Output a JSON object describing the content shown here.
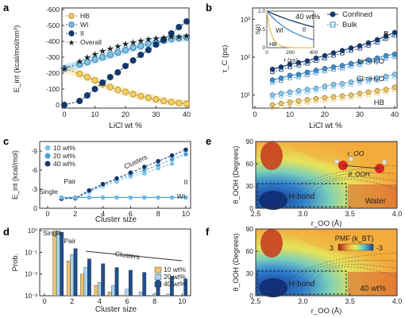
{
  "panel_letters": {
    "a": "a",
    "b": "b",
    "c": "c",
    "d": "d",
    "e": "e",
    "f": "f"
  },
  "colors": {
    "HB": "#f3cf63",
    "WI": "#7fc4e8",
    "II": "#12386b",
    "Overall": "#5ab3e0",
    "d10": "#f2c36a",
    "d20": "#a8d4ef",
    "d40": "#1f4f8c"
  },
  "chart_data": [
    {
      "id": "a",
      "type": "line",
      "ylabel": "E_int (kcal/mol/nm³)",
      "xlabel": "LiCl wt %",
      "xlim": [
        0,
        40
      ],
      "ylim": [
        0,
        -600
      ],
      "xticks": [
        0,
        10,
        20,
        30,
        40
      ],
      "yticks": [
        0,
        -100,
        -200,
        -300,
        -400,
        -500,
        -600
      ],
      "x": [
        0,
        5,
        7.5,
        10,
        12.5,
        15,
        17.5,
        20,
        22.5,
        25,
        27.5,
        30,
        32.5,
        35,
        37.5,
        40
      ],
      "series": [
        {
          "name": "HB",
          "values": [
            -230,
            -195,
            -175,
            -155,
            -130,
            -112,
            -95,
            -82,
            -68,
            -55,
            -45,
            -35,
            -25,
            -18,
            -12,
            -8
          ]
        },
        {
          "name": "WI",
          "values": [
            -230,
            -255,
            -270,
            -285,
            -300,
            -315,
            -330,
            -345,
            -360,
            -370,
            -385,
            -395,
            -405,
            -415,
            -420,
            -425
          ]
        },
        {
          "name": "II",
          "values": [
            0,
            -25,
            -60,
            -100,
            -140,
            -175,
            -205,
            -245,
            -280,
            -315,
            -345,
            -380,
            -410,
            -450,
            -490,
            -525
          ]
        },
        {
          "name": "Overall",
          "values": [
            -230,
            -275,
            -300,
            -320,
            -340,
            -355,
            -370,
            -385,
            -395,
            -405,
            -415,
            -420,
            -425,
            -430,
            -430,
            -435
          ]
        }
      ]
    },
    {
      "id": "b",
      "type": "line",
      "ylabel": "τ_C (ps)",
      "xlabel": "LiCl wt %",
      "xlim": [
        0,
        40
      ],
      "ylim": [
        5,
        2000
      ],
      "yscale": "log",
      "xticks": [
        0,
        10,
        20,
        30,
        40
      ],
      "ytick_labels": [
        "10¹",
        "10²",
        "10³"
      ],
      "x": [
        5,
        7.5,
        10,
        12.5,
        15,
        17.5,
        20,
        22.5,
        25,
        27.5,
        30,
        32.5,
        35,
        37.5,
        40
      ],
      "series": [
        {
          "name": "II",
          "values": [
            48,
            55,
            65,
            72,
            80,
            95,
            110,
            130,
            150,
            175,
            200,
            240,
            290,
            360,
            450
          ]
        },
        {
          "name": "Li⁺-H₂O",
          "values": [
            25,
            28,
            33,
            35,
            40,
            45,
            50,
            55,
            60,
            68,
            75,
            85,
            95,
            110,
            120
          ]
        },
        {
          "name": "Cl⁻-H₂O",
          "values": [
            10,
            11,
            12,
            13,
            14,
            15,
            17,
            19,
            20,
            22,
            24,
            26,
            28,
            31,
            35
          ]
        },
        {
          "name": "HB",
          "values": [
            5.5,
            6,
            6.5,
            7,
            7.5,
            8,
            8.5,
            9,
            9.5,
            10,
            11,
            12,
            13,
            14,
            16
          ]
        }
      ],
      "legend": [
        "Confined",
        "Bulk"
      ],
      "inset": {
        "label": "40 wt%",
        "ylabel": "S(τ)",
        "xlabel": "τ (ps)",
        "xticks": [
          "0",
          "200",
          "400"
        ],
        "yticks": [
          "0",
          "0.5",
          "1.0"
        ],
        "curves": [
          "WI",
          "II",
          "HB"
        ]
      }
    },
    {
      "id": "c",
      "type": "scatter",
      "ylabel": "E_int (kcal/mol)",
      "xlabel": "Cluster size",
      "xlim": [
        0,
        10
      ],
      "ylim": [
        0,
        -10
      ],
      "xticks": [
        0,
        2,
        4,
        6,
        8,
        10
      ],
      "yticks": [
        0,
        -3,
        -6,
        -9
      ],
      "series": [
        {
          "name": "10 wt%",
          "values": [
            [
              1,
              -1.5
            ],
            [
              2,
              -1.5
            ],
            [
              3,
              -2.5
            ],
            [
              4,
              -3.5
            ],
            [
              5,
              -4.2
            ],
            [
              6,
              -5
            ],
            [
              7,
              -5.5
            ],
            [
              8,
              -6.3
            ],
            [
              9,
              -7
            ]
          ]
        },
        {
          "name": "20 wt%",
          "values": [
            [
              1,
              -1.5
            ],
            [
              2,
              -1.6
            ],
            [
              3,
              -2.7
            ],
            [
              4,
              -3.7
            ],
            [
              5,
              -4.5
            ],
            [
              6,
              -5.3
            ],
            [
              7,
              -6
            ],
            [
              8,
              -6.8
            ],
            [
              9,
              -7.7
            ],
            [
              10,
              -8.5
            ]
          ]
        },
        {
          "name": "40 wt%",
          "values": [
            [
              1,
              -1.5
            ],
            [
              2,
              -1.6
            ],
            [
              3,
              -2.8
            ],
            [
              4,
              -3.8
            ],
            [
              5,
              -4.7
            ],
            [
              6,
              -5.6
            ],
            [
              7,
              -6.5
            ],
            [
              8,
              -7.4
            ],
            [
              9,
              -8.3
            ],
            [
              10,
              -9.2
            ]
          ]
        }
      ],
      "annotations": [
        "Single",
        "Pair",
        "Clusters",
        "II",
        "WI"
      ]
    },
    {
      "id": "d",
      "type": "bar",
      "yscale": "log",
      "ylabel": "Prob.",
      "xlabel": "Cluster size",
      "ylim": [
        0.001,
        1
      ],
      "ytick_labels": [
        "10⁻³",
        "10⁻²",
        "10⁻¹",
        "10⁰"
      ],
      "categories": [
        1,
        2,
        3,
        4,
        5,
        6,
        7,
        8,
        9,
        10
      ],
      "xticks": [
        0,
        2,
        4,
        6,
        8,
        10
      ],
      "series": [
        {
          "name": "10 wt%",
          "values": [
            1.0,
            0.04,
            0.01,
            0.003,
            0.0015,
            0.001,
            0.001,
            0.001,
            0.001,
            0.001
          ]
        },
        {
          "name": "20 wt%",
          "values": [
            1.0,
            0.08,
            0.02,
            0.004,
            0.003,
            0.002,
            0.0015,
            0.0012,
            0.0012,
            0.001
          ]
        },
        {
          "name": "40 wt%",
          "values": [
            0.85,
            0.15,
            0.05,
            0.03,
            0.02,
            0.015,
            0.012,
            0.01,
            0.008,
            0.006
          ]
        }
      ],
      "annotations": [
        "Single",
        "Pair",
        "Clusters"
      ]
    },
    {
      "id": "e",
      "type": "heatmap",
      "ylabel": "θ_OOH (Degrees)",
      "xlabel": "r_OO (Å)",
      "xlim": [
        2.5,
        4.0
      ],
      "ylim": [
        0,
        90
      ],
      "xticks": [
        "2.5",
        "3.0",
        "3.5",
        "4.0"
      ],
      "yticks": [
        "0",
        "30",
        "60",
        "90"
      ],
      "annotations": [
        "H-bond",
        "Water",
        "r_OO",
        "θ_OOH"
      ]
    },
    {
      "id": "f",
      "type": "heatmap",
      "ylabel": "θ_OOH (Degrees)",
      "xlabel": "r_OO (Å)",
      "xlim": [
        2.5,
        4.0
      ],
      "ylim": [
        0,
        90
      ],
      "xticks": [
        "2.5",
        "3.0",
        "3.5",
        "4.0"
      ],
      "yticks": [
        "0",
        "30",
        "60",
        "90"
      ],
      "colorbar": {
        "label": "PMF (k_BT)",
        "min": "3",
        "max": "-3"
      },
      "annotations": [
        "H-bond",
        "40 wt%"
      ]
    }
  ]
}
